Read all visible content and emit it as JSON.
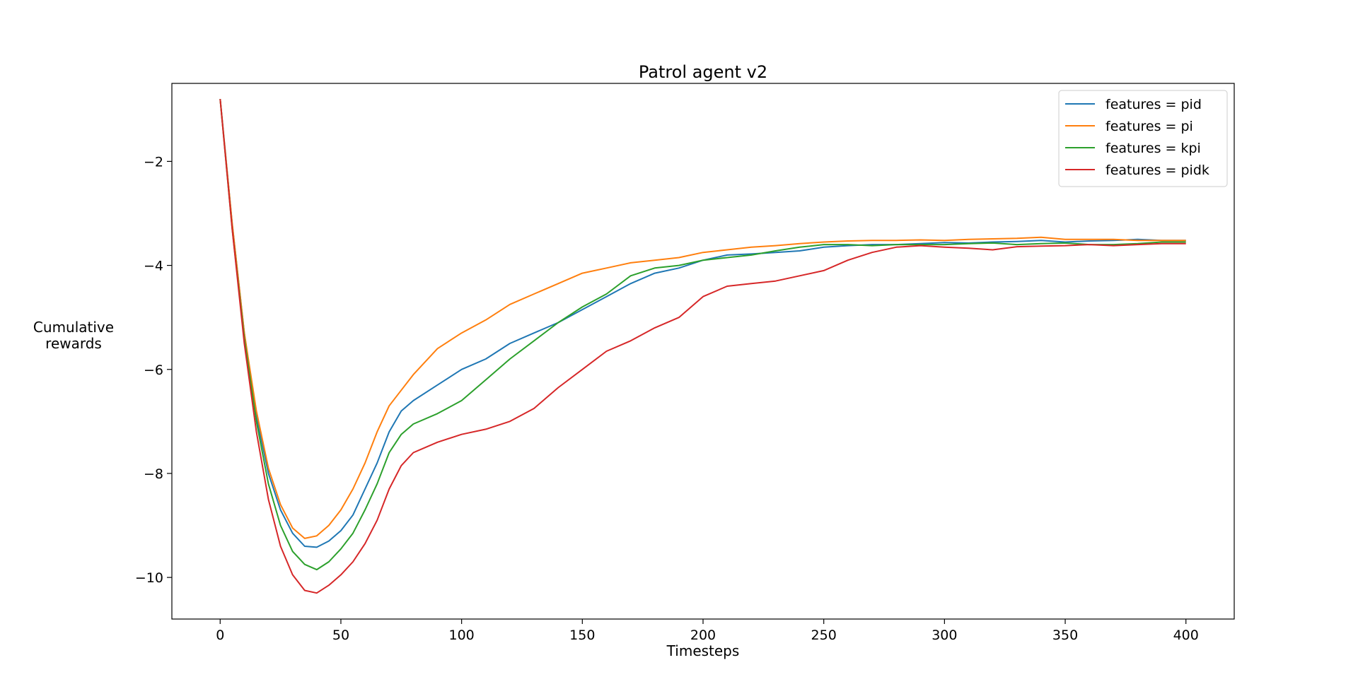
{
  "chart_data": {
    "type": "line",
    "title": "Patrol agent v2",
    "xlabel": "Timesteps",
    "ylabel": [
      "Cumulative",
      "rewards"
    ],
    "xlim": [
      -20,
      420
    ],
    "ylim": [
      -10.8,
      -0.5
    ],
    "xticks": [
      0,
      50,
      100,
      150,
      200,
      250,
      300,
      350,
      400
    ],
    "yticks": [
      -2,
      -4,
      -6,
      -8,
      -10
    ],
    "ytick_labels": [
      "−2",
      "−4",
      "−6",
      "−8",
      "−10"
    ],
    "grid": false,
    "legend_position": "top-right",
    "x": [
      0,
      5,
      10,
      15,
      20,
      25,
      30,
      35,
      40,
      45,
      50,
      55,
      60,
      65,
      70,
      75,
      80,
      90,
      100,
      110,
      120,
      130,
      140,
      150,
      160,
      170,
      180,
      190,
      200,
      210,
      220,
      230,
      240,
      250,
      260,
      270,
      280,
      290,
      300,
      310,
      320,
      330,
      340,
      350,
      360,
      370,
      380,
      390,
      400
    ],
    "series": [
      {
        "name": "features = pid",
        "color": "#1f77b4",
        "values": [
          -0.8,
          -3.2,
          -5.3,
          -6.9,
          -8.0,
          -8.7,
          -9.15,
          -9.4,
          -9.42,
          -9.3,
          -9.1,
          -8.8,
          -8.3,
          -7.8,
          -7.2,
          -6.8,
          -6.6,
          -6.3,
          -6.0,
          -5.8,
          -5.5,
          -5.3,
          -5.1,
          -4.85,
          -4.6,
          -4.35,
          -4.15,
          -4.05,
          -3.9,
          -3.8,
          -3.78,
          -3.75,
          -3.72,
          -3.65,
          -3.62,
          -3.6,
          -3.6,
          -3.58,
          -3.56,
          -3.57,
          -3.55,
          -3.54,
          -3.52,
          -3.55,
          -3.53,
          -3.52,
          -3.5,
          -3.52,
          -3.52
        ]
      },
      {
        "name": "features = pi",
        "color": "#ff7f0e",
        "values": [
          -0.8,
          -3.2,
          -5.3,
          -6.8,
          -7.9,
          -8.6,
          -9.05,
          -9.25,
          -9.2,
          -9.0,
          -8.7,
          -8.3,
          -7.8,
          -7.2,
          -6.7,
          -6.4,
          -6.1,
          -5.6,
          -5.3,
          -5.05,
          -4.75,
          -4.55,
          -4.35,
          -4.15,
          -4.05,
          -3.95,
          -3.9,
          -3.85,
          -3.75,
          -3.7,
          -3.65,
          -3.62,
          -3.58,
          -3.55,
          -3.53,
          -3.52,
          -3.52,
          -3.51,
          -3.52,
          -3.5,
          -3.49,
          -3.48,
          -3.46,
          -3.5,
          -3.5,
          -3.5,
          -3.52,
          -3.52,
          -3.52
        ]
      },
      {
        "name": "features = kpi",
        "color": "#2ca02c",
        "values": [
          -0.8,
          -3.3,
          -5.4,
          -7.0,
          -8.2,
          -9.0,
          -9.5,
          -9.75,
          -9.85,
          -9.7,
          -9.45,
          -9.15,
          -8.7,
          -8.2,
          -7.6,
          -7.25,
          -7.05,
          -6.85,
          -6.6,
          -6.2,
          -5.8,
          -5.45,
          -5.1,
          -4.8,
          -4.55,
          -4.2,
          -4.05,
          -4.0,
          -3.9,
          -3.85,
          -3.8,
          -3.72,
          -3.65,
          -3.6,
          -3.6,
          -3.62,
          -3.6,
          -3.6,
          -3.6,
          -3.58,
          -3.57,
          -3.6,
          -3.58,
          -3.57,
          -3.6,
          -3.6,
          -3.58,
          -3.55,
          -3.55
        ]
      },
      {
        "name": "features = pidk",
        "color": "#d62728",
        "values": [
          -0.8,
          -3.3,
          -5.5,
          -7.2,
          -8.5,
          -9.4,
          -9.95,
          -10.25,
          -10.3,
          -10.15,
          -9.95,
          -9.7,
          -9.35,
          -8.9,
          -8.3,
          -7.85,
          -7.6,
          -7.4,
          -7.25,
          -7.15,
          -7.0,
          -6.75,
          -6.35,
          -6.0,
          -5.65,
          -5.45,
          -5.2,
          -5.0,
          -4.6,
          -4.4,
          -4.35,
          -4.3,
          -4.2,
          -4.1,
          -3.9,
          -3.75,
          -3.65,
          -3.62,
          -3.65,
          -3.67,
          -3.7,
          -3.64,
          -3.63,
          -3.62,
          -3.6,
          -3.62,
          -3.6,
          -3.58,
          -3.58
        ]
      }
    ]
  }
}
